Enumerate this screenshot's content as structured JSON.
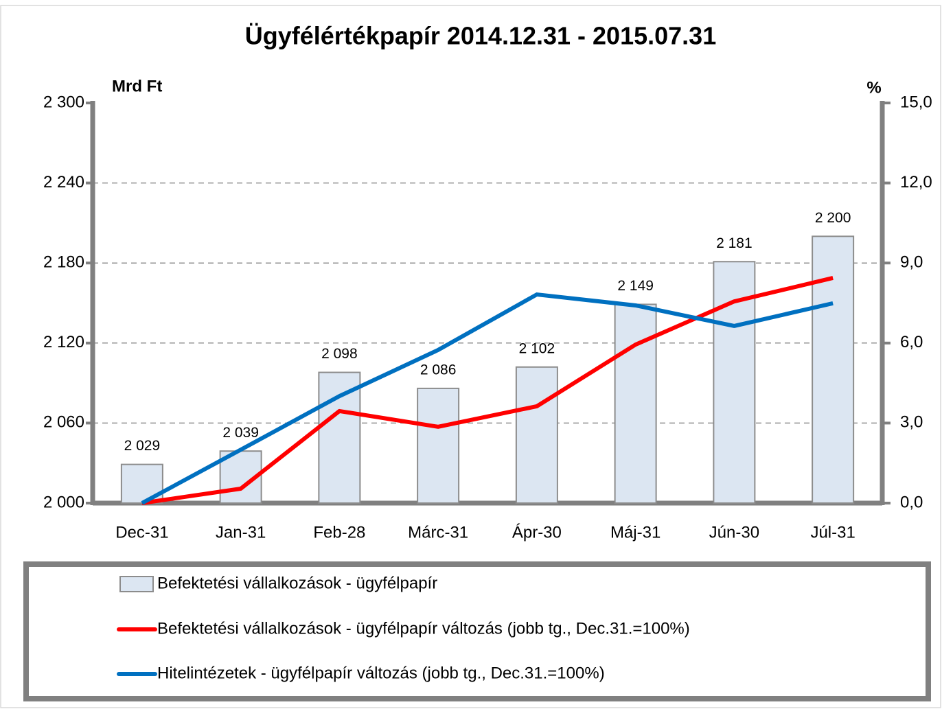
{
  "chart_data": {
    "type": "bar",
    "title": "Ügyfélértékpapír 2014.12.31 - 2015.07.31",
    "y_label": "Mrd Ft",
    "y2_label": "%",
    "categories": [
      "Dec-31",
      "Jan-31",
      "Feb-28",
      "Márc-31",
      "Ápr-30",
      "Máj-31",
      "Jún-30",
      "Júl-31"
    ],
    "series": [
      {
        "name": "Befektetési vállalkozások - ügyfélpapír",
        "type": "bar",
        "color": "#dce6f2",
        "values": [
          2029,
          2039,
          2098,
          2086,
          2102,
          2149,
          2181,
          2200
        ],
        "value_labels": [
          "2 029",
          "2 039",
          "2 098",
          "2 086",
          "2 102",
          "2 149",
          "2 181",
          "2 200"
        ]
      },
      {
        "name": "Befektetési vállalkozások - ügyfélpapír változás (jobb tg., Dec.31.=100%)",
        "type": "line",
        "color": "#ff0000",
        "axis": "y2",
        "values": [
          0,
          0.54,
          3.45,
          2.86,
          3.63,
          5.94,
          7.56,
          8.44
        ]
      },
      {
        "name": "Hitelintézetek - ügyfélpapír változás (jobb tg., Dec.31.=100%)",
        "type": "line",
        "color": "#0070c0",
        "axis": "y2",
        "values": [
          0,
          2.0,
          4.01,
          5.74,
          7.82,
          7.41,
          6.64,
          7.49
        ]
      }
    ],
    "ylim": [
      2000,
      2300
    ],
    "yticks": [
      {
        "value": 2000,
        "label": "2 000"
      },
      {
        "value": 2060,
        "label": "2 060"
      },
      {
        "value": 2120,
        "label": "2 120"
      },
      {
        "value": 2180,
        "label": "2 180"
      },
      {
        "value": 2240,
        "label": "2 240"
      },
      {
        "value": 2300,
        "label": "2 300"
      }
    ],
    "y2lim": [
      0,
      15
    ],
    "y2ticks": [
      {
        "value": 0,
        "label": "0,0"
      },
      {
        "value": 3,
        "label": "3,0"
      },
      {
        "value": 6,
        "label": "6,0"
      },
      {
        "value": 9,
        "label": "9,0"
      },
      {
        "value": 12,
        "label": "12,0"
      },
      {
        "value": 15,
        "label": "15,0"
      }
    ],
    "grid": true,
    "legend": "bottom"
  }
}
